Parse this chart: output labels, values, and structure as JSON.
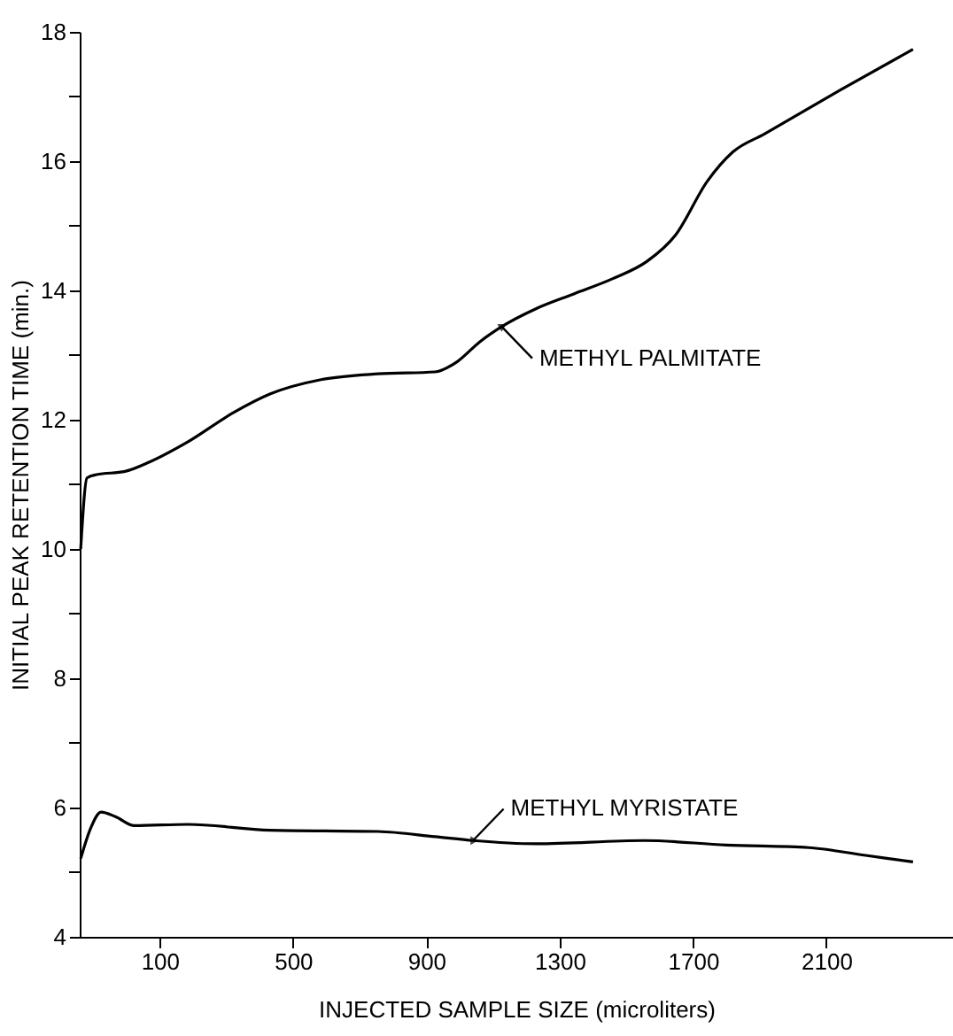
{
  "chart_data": {
    "type": "line",
    "xlabel": "INJECTED SAMPLE SIZE (microliters)",
    "ylabel": "INITIAL PEAK RETENTION TIME  (min.)",
    "xlim": [
      -140,
      2480
    ],
    "xticks": [
      100,
      500,
      900,
      1300,
      1700,
      2100
    ],
    "ylim": [
      4,
      18
    ],
    "yticks": [
      4,
      {
        "value": 5,
        "label": null
      },
      6,
      {
        "value": 7,
        "label": null
      },
      8,
      {
        "value": 9,
        "label": null
      },
      10,
      {
        "value": 11,
        "label": null
      },
      12,
      {
        "value": 13,
        "label": null
      },
      14,
      {
        "value": 15,
        "label": null
      },
      16,
      {
        "value": 17,
        "label": null
      },
      18
    ],
    "grid": false,
    "line_style": "solid",
    "series": [
      {
        "color": "#000000",
        "x": [
          -137,
          -118,
          -90,
          -4,
          71,
          185,
          318,
          432,
          584,
          755,
          926,
          993,
          1059,
          1126,
          1230,
          1344,
          1458,
          1562,
          1648,
          1743,
          1819,
          1914,
          2142,
          2360
        ],
        "values": [
          10.0,
          11.1,
          11.15,
          11.2,
          11.35,
          11.66,
          12.1,
          12.4,
          12.62,
          12.71,
          12.74,
          12.9,
          13.2,
          13.44,
          13.72,
          13.95,
          14.18,
          14.45,
          14.86,
          15.69,
          16.14,
          16.42,
          17.1,
          17.73
        ]
      },
      {
        "color": "#000000",
        "x": [
          -137,
          -108,
          -76,
          -33,
          24,
          185,
          432,
          755,
          926,
          1040,
          1230,
          1553,
          1800,
          2047,
          2218,
          2360
        ],
        "values": [
          5.21,
          5.67,
          5.93,
          5.86,
          5.72,
          5.74,
          5.65,
          5.63,
          5.55,
          5.49,
          5.44,
          5.49,
          5.42,
          5.38,
          5.26,
          5.16
        ]
      }
    ],
    "annotations": [
      {
        "text": "METHYL PALMITATE",
        "x": 1126,
        "y": 13.44
      },
      {
        "text": "METHYL MYRISTATE",
        "x": 1040,
        "y": 5.49
      }
    ]
  }
}
